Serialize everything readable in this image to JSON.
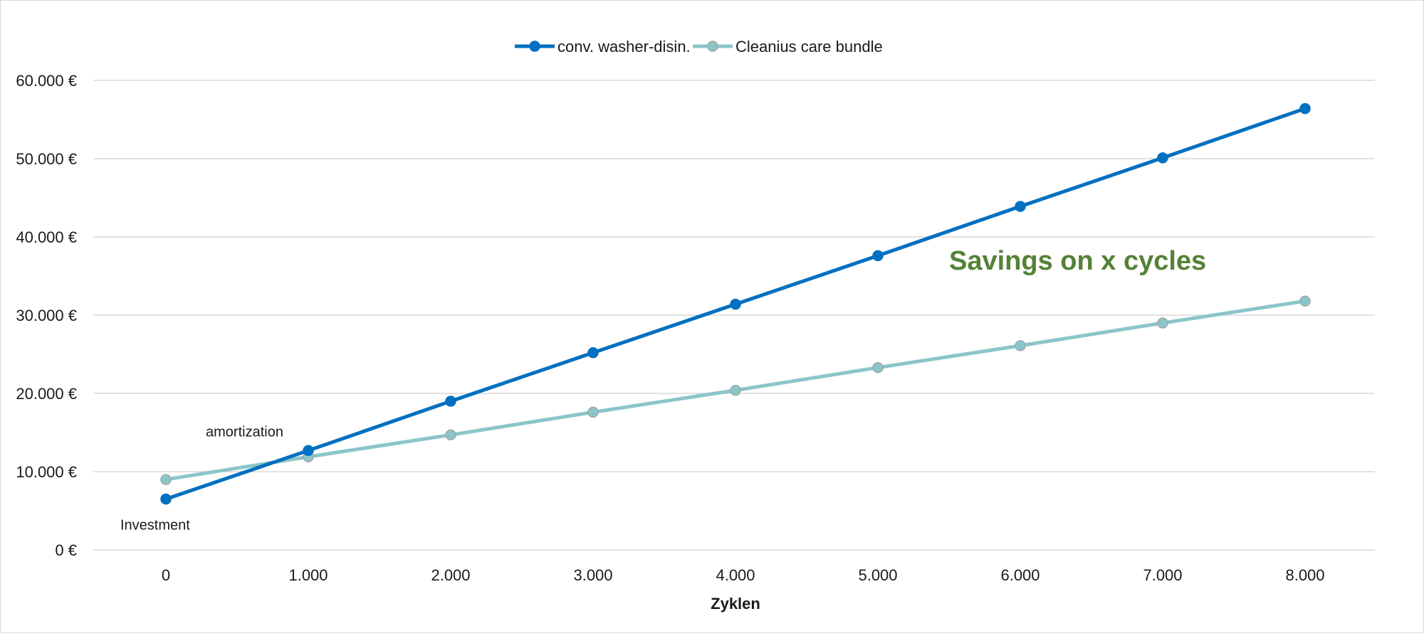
{
  "chart_data": {
    "type": "line",
    "xlabel": "Zyklen",
    "x": [
      0,
      1000,
      2000,
      3000,
      4000,
      5000,
      6000,
      7000,
      8000
    ],
    "x_tick_labels": [
      "0",
      "1.000",
      "2.000",
      "3.000",
      "4.000",
      "5.000",
      "6.000",
      "7.000",
      "8.000"
    ],
    "ylim": [
      0,
      60000
    ],
    "y_ticks": [
      0,
      10000,
      20000,
      30000,
      40000,
      50000,
      60000
    ],
    "y_tick_labels": [
      "0 €",
      "10.000 €",
      "20.000 €",
      "30.000 €",
      "40.000 €",
      "50.000 €",
      "60.000 €"
    ],
    "grid": true,
    "legend_position": "top-center",
    "series": [
      {
        "name": "conv. washer-disin.",
        "color": "#0070c0",
        "values": [
          6500,
          12700,
          19000,
          25200,
          31400,
          37600,
          43900,
          50100,
          56400
        ]
      },
      {
        "name": "Cleanius care bundle",
        "color": "#8ac6c9",
        "values": [
          9000,
          11900,
          14700,
          17600,
          20400,
          23300,
          26100,
          29000,
          31800
        ]
      }
    ],
    "annotations": [
      {
        "text": "Savings on x cycles",
        "x": 5500,
        "y": 35800,
        "color": "#548235"
      },
      {
        "text": "amortization",
        "x": 280,
        "y": 14500
      },
      {
        "text": "Investment",
        "x": -320,
        "y": 2600
      }
    ]
  }
}
